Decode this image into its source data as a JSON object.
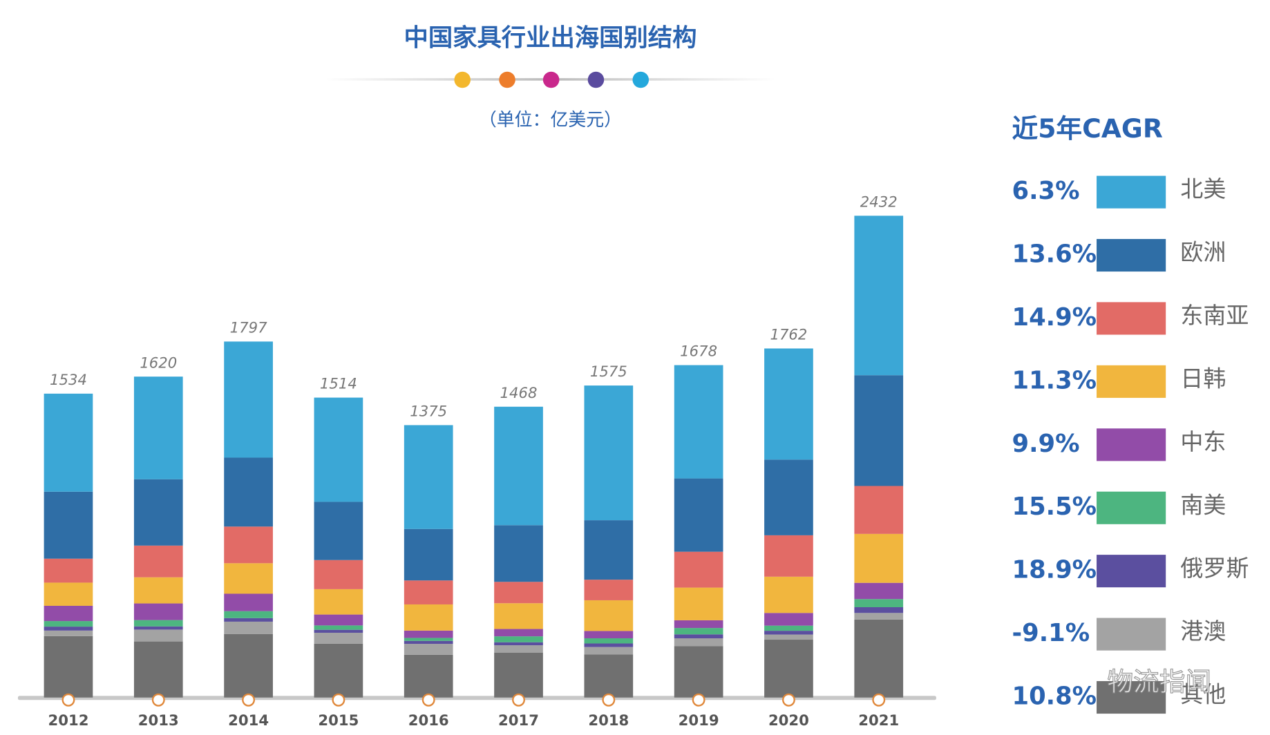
{
  "chart_data": {
    "type": "stacked-bar",
    "title": "中国家具行业出海国别结构",
    "subtitle": "（单位：亿美元）",
    "legend_title": "近5年CAGR",
    "categories": [
      "2012",
      "2013",
      "2014",
      "2015",
      "2016",
      "2017",
      "2018",
      "2019",
      "2020",
      "2021"
    ],
    "totals": [
      1534,
      1620,
      1797,
      1514,
      1375,
      1468,
      1575,
      1678,
      1762,
      2432
    ],
    "series": [
      {
        "name": "北美",
        "color": "#3ba7d6",
        "cagr": "6.3%",
        "values": [
          495,
          518,
          586,
          526,
          524,
          598,
          680,
          572,
          561,
          805
        ]
      },
      {
        "name": "欧洲",
        "color": "#2f6ea6",
        "cagr": "13.6%",
        "values": [
          338,
          335,
          348,
          294,
          260,
          286,
          300,
          370,
          382,
          559
        ]
      },
      {
        "name": "东南亚",
        "color": "#e26b66",
        "cagr": "14.9%",
        "values": [
          121,
          160,
          185,
          147,
          121,
          108,
          104,
          181,
          209,
          242
        ]
      },
      {
        "name": "日韩",
        "color": "#f1b63e",
        "cagr": "11.3%",
        "values": [
          117,
          132,
          154,
          128,
          132,
          130,
          155,
          165,
          183,
          247
        ]
      },
      {
        "name": "中东",
        "color": "#924ca8",
        "cagr": "9.9%",
        "values": [
          77,
          84,
          88,
          55,
          37,
          37,
          37,
          39,
          64,
          82
        ]
      },
      {
        "name": "南美",
        "color": "#4db580",
        "cagr": "15.5%",
        "values": [
          28,
          32,
          35,
          22,
          15,
          30,
          26,
          32,
          26,
          41
        ]
      },
      {
        "name": "俄罗斯",
        "color": "#5b4f9f",
        "cagr": "18.9%",
        "values": [
          20,
          16,
          18,
          15,
          15,
          15,
          18,
          20,
          19,
          29
        ]
      },
      {
        "name": "港澳",
        "color": "#a3a3a3",
        "cagr": "-9.1%",
        "values": [
          28,
          60,
          62,
          55,
          55,
          37,
          37,
          39,
          26,
          33
        ]
      },
      {
        "name": "其他",
        "color": "#707070",
        "cagr": "10.8%",
        "values": [
          310,
          283,
          321,
          272,
          216,
          227,
          218,
          260,
          292,
          394
        ]
      }
    ],
    "watermark": "物流指闻"
  }
}
